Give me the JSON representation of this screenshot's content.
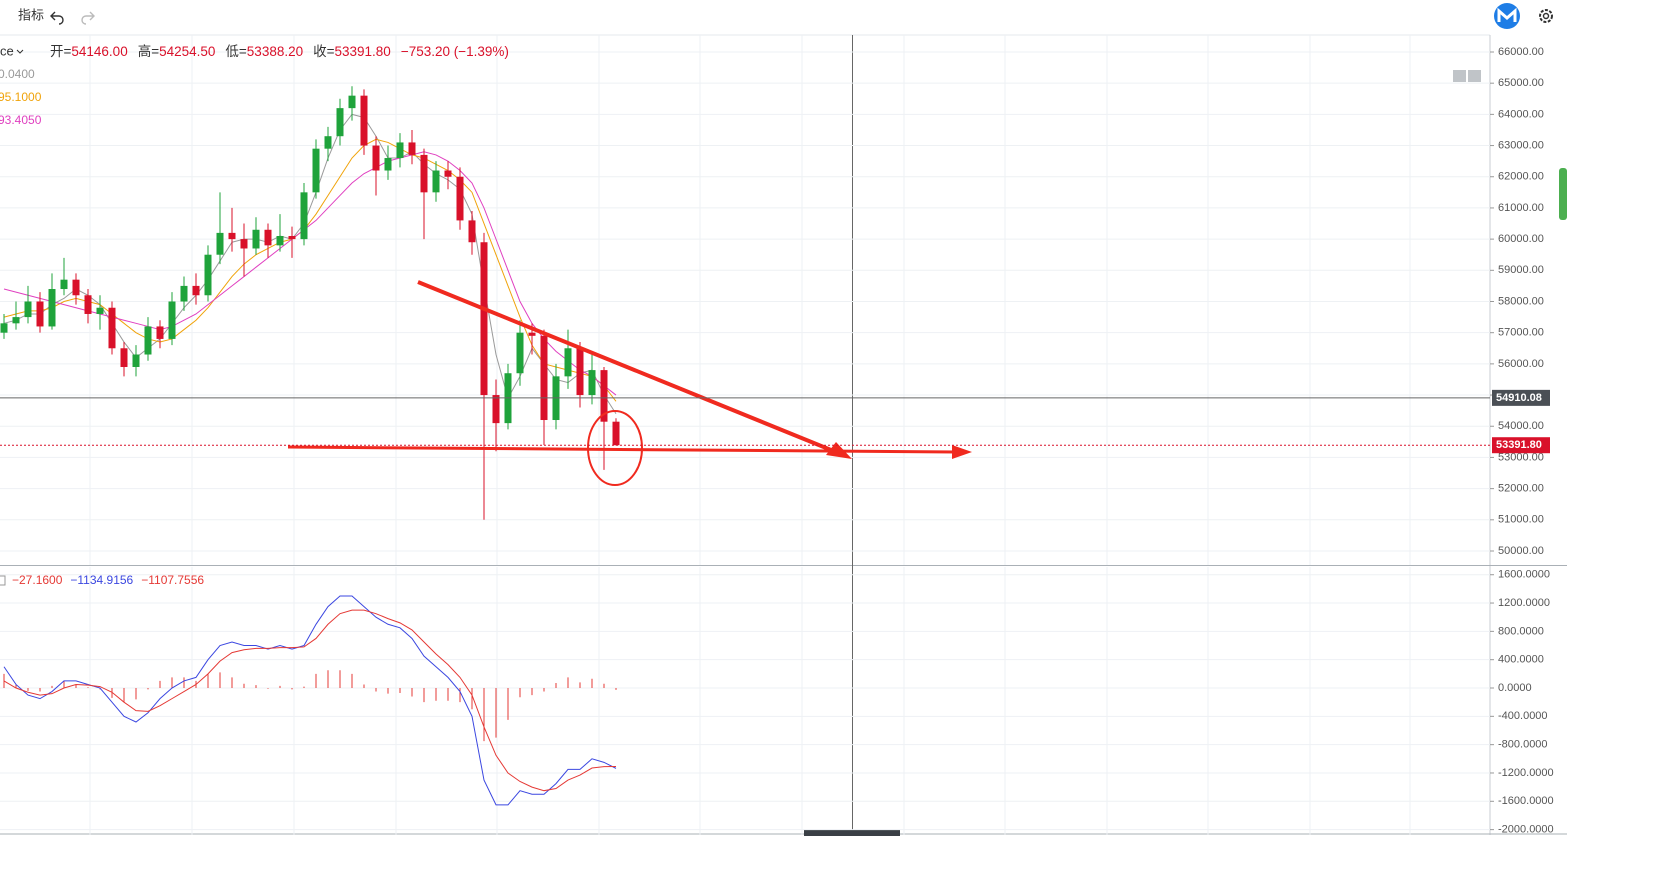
{
  "toolbar": {
    "indicators": "指标"
  },
  "chart_data": [
    {
      "type": "candlestick",
      "symbol": "ce",
      "legend": [
        {
          "label": "开=",
          "value": "54146.00"
        },
        {
          "label": "高=",
          "value": "54254.50"
        },
        {
          "label": "低=",
          "value": "53388.20"
        },
        {
          "label": "收=",
          "value": "53391.80"
        },
        {
          "value": "−753.20 (−1.39%)"
        }
      ],
      "up_color": "#1fa33b",
      "down_color": "#d9112a",
      "ohlc": [
        [
          57000,
          57600,
          56800,
          57300
        ],
        [
          57300,
          58000,
          57100,
          57500
        ],
        [
          57500,
          58500,
          57300,
          58000
        ],
        [
          58000,
          58300,
          57000,
          57200
        ],
        [
          57200,
          58900,
          57100,
          58400
        ],
        [
          58400,
          59400,
          58200,
          58700
        ],
        [
          58700,
          58900,
          57900,
          58200
        ],
        [
          58200,
          58400,
          57300,
          57600
        ],
        [
          57600,
          58200,
          57100,
          57800
        ],
        [
          57800,
          58000,
          56300,
          56500
        ],
        [
          56500,
          56700,
          55600,
          55900
        ],
        [
          55900,
          56600,
          55600,
          56300
        ],
        [
          56300,
          57500,
          56100,
          57200
        ],
        [
          57200,
          57400,
          56500,
          56800
        ],
        [
          56800,
          58300,
          56600,
          58000
        ],
        [
          58000,
          58800,
          57700,
          58500
        ],
        [
          58500,
          58900,
          57900,
          58200
        ],
        [
          58200,
          59800,
          58000,
          59500
        ],
        [
          59500,
          61500,
          59200,
          60200
        ],
        [
          60200,
          61000,
          59600,
          60000
        ],
        [
          60000,
          60500,
          58800,
          59700
        ],
        [
          59700,
          60700,
          59500,
          60300
        ],
        [
          60300,
          60500,
          59400,
          59800
        ],
        [
          59800,
          60800,
          59600,
          60100
        ],
        [
          60100,
          60400,
          59400,
          60000
        ],
        [
          60000,
          61800,
          59800,
          61500
        ],
        [
          61500,
          63200,
          61300,
          62900
        ],
        [
          62900,
          63600,
          62500,
          63300
        ],
        [
          63300,
          64500,
          63000,
          64200
        ],
        [
          64200,
          64900,
          63800,
          64600
        ],
        [
          64600,
          64800,
          62700,
          63000
        ],
        [
          63000,
          63300,
          61400,
          62200
        ],
        [
          62200,
          63000,
          61900,
          62600
        ],
        [
          62600,
          63400,
          62300,
          63100
        ],
        [
          63100,
          63500,
          62400,
          62700
        ],
        [
          62700,
          62900,
          60000,
          61500
        ],
        [
          61500,
          62500,
          61200,
          62200
        ],
        [
          62200,
          62500,
          61600,
          62000
        ],
        [
          62000,
          62300,
          60300,
          60600
        ],
        [
          60600,
          60900,
          59500,
          59900
        ],
        [
          59900,
          60200,
          51000,
          55000
        ],
        [
          55000,
          55500,
          53200,
          54100
        ],
        [
          54100,
          56000,
          53900,
          55700
        ],
        [
          55700,
          57400,
          55300,
          57000
        ],
        [
          57000,
          57300,
          56300,
          56900
        ],
        [
          56900,
          57100,
          53400,
          54200
        ],
        [
          54200,
          56000,
          53900,
          55600
        ],
        [
          55600,
          57100,
          55200,
          56500
        ],
        [
          56500,
          56700,
          54600,
          55000
        ],
        [
          55000,
          56300,
          54700,
          55800
        ],
        [
          55800,
          55900,
          52600,
          54146
        ],
        [
          54146,
          54254.5,
          53388.2,
          53391.8
        ]
      ],
      "series": [
        {
          "name": "0.0400",
          "color": "#9a9a9a",
          "values": [
            57300,
            57400,
            57600,
            57600,
            57900,
            58100,
            58400,
            58200,
            57900,
            57300,
            56700,
            56200,
            56500,
            56800,
            57300,
            57800,
            58200,
            58700,
            59300,
            59900,
            60000,
            60000,
            59900,
            60100,
            60000,
            60500,
            61500,
            62600,
            63500,
            64000,
            63900,
            63300,
            62600,
            62600,
            62800,
            62400,
            62100,
            61900,
            61600,
            60800,
            58500,
            56300,
            54900,
            55600,
            56500,
            56000,
            55500,
            55400,
            55700,
            55800,
            55000,
            54400
          ]
        },
        {
          "name": "95.1000",
          "color": "#f0a30a",
          "values": [
            57500,
            57600,
            57700,
            57700,
            57800,
            58000,
            58100,
            58000,
            57900,
            57600,
            57300,
            57000,
            56800,
            56700,
            56800,
            57100,
            57400,
            57800,
            58300,
            58800,
            59200,
            59500,
            59700,
            59900,
            60000,
            60300,
            60800,
            61400,
            62000,
            62600,
            63000,
            63200,
            63100,
            62900,
            62700,
            62600,
            62400,
            62200,
            61900,
            61500,
            60500,
            59500,
            58500,
            57500,
            56600,
            56000,
            55900,
            55800,
            55700,
            55600,
            55300,
            54800
          ]
        },
        {
          "name": "93.4050",
          "color": "#e040c0",
          "values": [
            58400,
            58300,
            58200,
            58100,
            58000,
            57900,
            57800,
            57700,
            57600,
            57500,
            57400,
            57300,
            57200,
            57100,
            57200,
            57400,
            57600,
            57900,
            58200,
            58500,
            58800,
            59100,
            59400,
            59700,
            60000,
            60300,
            60600,
            61000,
            61400,
            61800,
            62100,
            62300,
            62500,
            62600,
            62700,
            62800,
            62700,
            62500,
            62200,
            61800,
            61000,
            60000,
            59000,
            58000,
            57300,
            56800,
            56400,
            56100,
            55800,
            55600,
            55300,
            55000
          ]
        }
      ],
      "ylim": [
        49551,
        66545
      ],
      "yticks": [
        {
          "value": 66000,
          "label": "66000.00"
        },
        {
          "value": 65000,
          "label": "65000.00"
        },
        {
          "value": 64000,
          "label": "64000.00"
        },
        {
          "value": 63000,
          "label": "63000.00"
        },
        {
          "value": 62000,
          "label": "62000.00"
        },
        {
          "value": 61000,
          "label": "61000.00"
        },
        {
          "value": 60000,
          "label": "60000.00"
        },
        {
          "value": 59000,
          "label": "59000.00"
        },
        {
          "value": 58000,
          "label": "58000.00"
        },
        {
          "value": 57000,
          "label": "57000.00"
        },
        {
          "value": 56000,
          "label": "56000.00"
        },
        {
          "value": 55000,
          "label": "55000.00"
        },
        {
          "value": 54000,
          "label": "54000.00"
        },
        {
          "value": 53000,
          "label": "53000.00"
        },
        {
          "value": 52000,
          "label": "52000.00"
        },
        {
          "value": 51000,
          "label": "51000.00"
        },
        {
          "value": 50000,
          "label": "50000.00"
        }
      ],
      "crosshair_price": 54910.08,
      "last_price": {
        "value": 53391.8,
        "label": "53391.80"
      },
      "grid": true
    },
    {
      "type": "macd",
      "histogram": {
        "name": "−27.1600",
        "color": "#e53935",
        "values": [
          200,
          50,
          -40,
          -50,
          30,
          100,
          50,
          10,
          -20,
          -140,
          -200,
          -160,
          -20,
          100,
          150,
          150,
          100,
          200,
          220,
          150,
          60,
          40,
          -10,
          30,
          -20,
          20,
          200,
          250,
          250,
          200,
          50,
          -50,
          -80,
          -70,
          -120,
          -200,
          -180,
          -180,
          -200,
          -300,
          -750,
          -700,
          -450,
          -130,
          -100,
          -50,
          70,
          150,
          80,
          130,
          60,
          -27.16
        ]
      },
      "series": [
        {
          "name": "−1134.9156",
          "color": "#3b47e0",
          "values": [
            300,
            50,
            -100,
            -150,
            -50,
            100,
            100,
            50,
            0,
            -200,
            -400,
            -480,
            -350,
            -150,
            0,
            100,
            150,
            400,
            600,
            650,
            600,
            600,
            550,
            600,
            550,
            600,
            900,
            1150,
            1300,
            1300,
            1150,
            1000,
            900,
            850,
            700,
            450,
            300,
            150,
            -50,
            -400,
            -1300,
            -1650,
            -1650,
            -1450,
            -1500,
            -1500,
            -1350,
            -1150,
            -1150,
            -1000,
            -1050,
            -1134.9156
          ]
        },
        {
          "name": "−1107.7556",
          "color": "#e53935",
          "values": [
            100,
            0,
            -60,
            -100,
            -80,
            0,
            50,
            40,
            20,
            -60,
            -200,
            -320,
            -330,
            -250,
            -150,
            -50,
            50,
            200,
            380,
            500,
            540,
            560,
            560,
            570,
            570,
            580,
            700,
            900,
            1050,
            1100,
            1100,
            1050,
            980,
            920,
            820,
            650,
            480,
            330,
            150,
            -100,
            -550,
            -950,
            -1200,
            -1320,
            -1400,
            -1450,
            -1420,
            -1300,
            -1230,
            -1130,
            -1110,
            -1107.7556
          ]
        }
      ],
      "ylim": [
        -2076,
        1709
      ],
      "yticks": [
        {
          "value": 1600,
          "label": "1600.0000"
        },
        {
          "value": 1200,
          "label": "1200.0000"
        },
        {
          "value": 800,
          "label": "800.0000"
        },
        {
          "value": 400,
          "label": "400.0000"
        },
        {
          "value": 0,
          "label": "0.0000"
        },
        {
          "value": -400,
          "label": "-400.0000"
        },
        {
          "value": -800,
          "label": "-800.0000"
        },
        {
          "value": -1200,
          "label": "-1200.0000"
        },
        {
          "value": -1600,
          "label": "-1600.0000"
        },
        {
          "value": -2000,
          "label": "-2000.0000"
        }
      ],
      "grid": true
    }
  ]
}
